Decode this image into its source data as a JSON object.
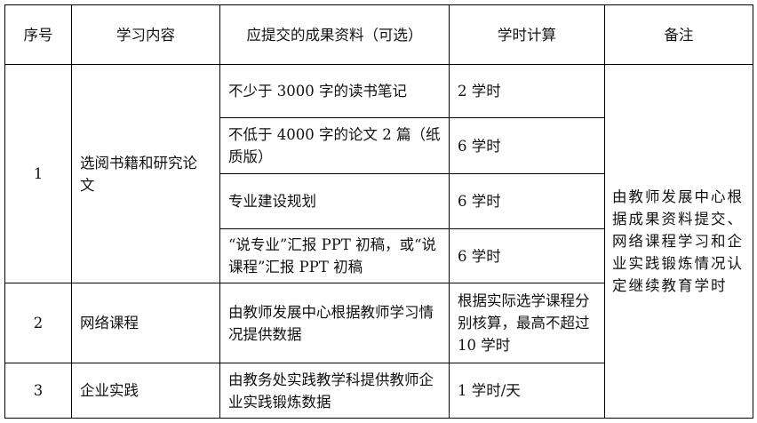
{
  "headers": [
    "序号",
    "学习内容",
    "应提交的成果资料（可选）",
    "学时计算",
    "备注"
  ],
  "rows": [
    {
      "no": "1",
      "content": "选阅书籍和研究论文",
      "items": [
        {
          "material": "不少于 3000 字的读书笔记",
          "hours": "2 学时"
        },
        {
          "material": "不低于 4000 字的论文 2 篇（纸质版）",
          "hours": "6 学时"
        },
        {
          "material": "专业建设规划",
          "hours": "6 学时"
        },
        {
          "material": "“说专业”汇报 PPT 初稿，或“说课程”汇报 PPT 初稿",
          "hours": "6 学时"
        }
      ]
    },
    {
      "no": "2",
      "content": "网络课程",
      "items": [
        {
          "material": "由教师发展中心根据教师学习情况提供数据",
          "hours": "根据实际选学课程分别核算，最高不超过 10 学时"
        }
      ]
    },
    {
      "no": "3",
      "content": "企业实践",
      "items": [
        {
          "material": "由教务处实践教学科提供教师企业实践锻炼数据",
          "hours": "1 学时/天"
        }
      ]
    }
  ],
  "remark": "由教师发展中心根据成果资料提交、网络课程学习和企业实践锻炼情况认定继续教育学时"
}
